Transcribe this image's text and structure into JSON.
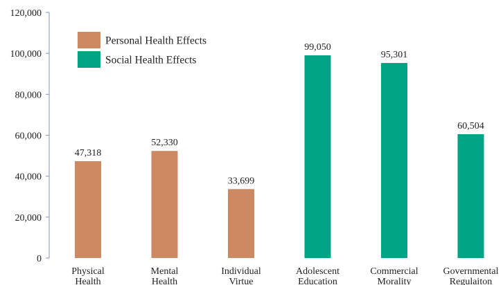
{
  "chart_data": {
    "type": "bar",
    "categories": [
      [
        "Physical",
        "Health"
      ],
      [
        "Mental",
        "Health"
      ],
      [
        "Individual",
        "Virtue"
      ],
      [
        "Adolescent",
        "Education"
      ],
      [
        "Commercial",
        "Morality"
      ],
      [
        "Governmental",
        "Regulaiton"
      ]
    ],
    "values": [
      47318,
      52330,
      33699,
      99050,
      95301,
      60504
    ],
    "value_labels": [
      "47,318",
      "52,330",
      "33,699",
      "99,050",
      "95,301",
      "60,504"
    ],
    "bar_series": [
      0,
      0,
      0,
      1,
      1,
      1
    ],
    "series": [
      {
        "name": "Personal Health Effects",
        "color": "#cd8a62"
      },
      {
        "name": "Social Health Effects",
        "color": "#00a383"
      }
    ],
    "title": "",
    "xlabel": "",
    "ylabel": "",
    "ylim": [
      0,
      120000
    ],
    "yticks": [
      0,
      20000,
      40000,
      60000,
      80000,
      100000,
      120000
    ],
    "ytick_labels": [
      "0",
      "20,000",
      "40,000",
      "60,000",
      "80,000",
      "100,000",
      "120,000"
    ],
    "grid": false,
    "legend_position": "top-left"
  },
  "colors": {
    "axis": "#7f96c4",
    "text": "#222222"
  }
}
